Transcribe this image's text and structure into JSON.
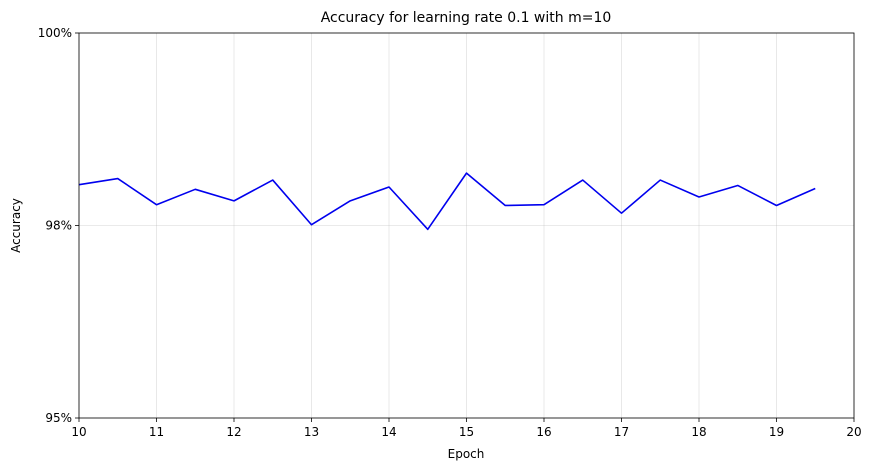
{
  "chart_data": {
    "type": "line",
    "title": "Accuracy for learning rate 0.1 with m=10",
    "xlabel": "Epoch",
    "ylabel": "Accuracy",
    "xlim": [
      10,
      20
    ],
    "ylim": [
      95,
      100
    ],
    "xticks": [
      10,
      11,
      12,
      13,
      14,
      15,
      16,
      17,
      18,
      19,
      20
    ],
    "xtick_labels": [
      "10",
      "11",
      "12",
      "13",
      "14",
      "15",
      "16",
      "17",
      "18",
      "19",
      "20"
    ],
    "yticks": [
      95,
      97.5,
      100
    ],
    "ytick_labels": [
      "95%",
      "98%",
      "100%"
    ],
    "grid": true,
    "series": [
      {
        "color": "#0000ee",
        "x": [
          10,
          10.5,
          11,
          11.5,
          12,
          12.5,
          13,
          13.5,
          14,
          14.5,
          15,
          15.5,
          16,
          16.5,
          17,
          17.5,
          18,
          18.5,
          19,
          19.5
        ],
        "y": [
          98.03,
          98.11,
          97.77,
          97.97,
          97.82,
          98.09,
          97.51,
          97.82,
          98.0,
          97.45,
          98.18,
          97.76,
          97.77,
          98.09,
          97.66,
          98.09,
          97.87,
          98.02,
          97.76,
          97.98
        ]
      }
    ]
  }
}
